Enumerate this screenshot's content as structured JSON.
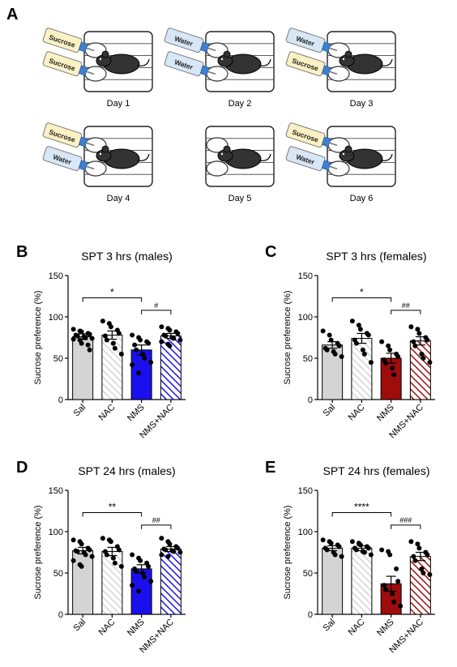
{
  "panel_letters": [
    "A",
    "B",
    "C",
    "D",
    "E"
  ],
  "schedule": {
    "days": [
      {
        "label": "Day 1",
        "bottles": [
          "Sucrose",
          "Sucrose"
        ]
      },
      {
        "label": "Day 2",
        "bottles": [
          "Water",
          "Water"
        ]
      },
      {
        "label": "Day 3",
        "bottles": [
          "Water",
          "Sucrose"
        ]
      },
      {
        "label": "Day 4",
        "bottles": [
          "Sucrose",
          "Water"
        ]
      },
      {
        "label": "Day 5",
        "bottles": []
      },
      {
        "label": "Day 6",
        "bottles": [
          "Sucrose",
          "Water"
        ]
      }
    ]
  },
  "colors": {
    "sal": "#d4d4d4",
    "nac_hatch": "#d4d4d4",
    "nms_males": "#1a10ee",
    "nac_nms_males_hatch": "#1a10ee",
    "nms_females": "#9e0c0c",
    "nac_nms_females_hatch": "#9e0c0c",
    "sucrose_label": "#fbf1c4",
    "water_label": "#d8e7f5",
    "mouse": "#333333"
  },
  "chart_data": [
    {
      "type": "bar",
      "panel": "B",
      "title": "SPT 3 hrs (males)",
      "ylabel": "Sucrose preference (%)",
      "categories": [
        "Sal",
        "NAC",
        "NMS",
        "NMS+NAC"
      ],
      "values": [
        76,
        78,
        60,
        77
      ],
      "errors": [
        3.5,
        5,
        6,
        3
      ],
      "ylim": [
        0,
        150
      ],
      "yticks": [
        0,
        50,
        100,
        150
      ],
      "points": [
        [
          85,
          83,
          82,
          80,
          79,
          78,
          77,
          76,
          75,
          74,
          73,
          72,
          68,
          66,
          60
        ],
        [
          95,
          92,
          88,
          84,
          80,
          77,
          72,
          68,
          62,
          55
        ],
        [
          78,
          75,
          72,
          70,
          68,
          66,
          60,
          55,
          50,
          45,
          42,
          32
        ],
        [
          88,
          86,
          84,
          82,
          80,
          78,
          77,
          75,
          74,
          72,
          70,
          67,
          65
        ]
      ],
      "annotations": [
        {
          "text": "*",
          "from": 0,
          "to": 2
        },
        {
          "text": "#",
          "from": 2,
          "to": 3
        }
      ]
    },
    {
      "type": "bar",
      "panel": "C",
      "title": "SPT 3 hrs (females)",
      "ylabel": "Sucrose preference (%)",
      "categories": [
        "Sal",
        "NAC",
        "NMS",
        "NMS+NAC"
      ],
      "values": [
        66,
        74,
        50,
        71
      ],
      "errors": [
        4,
        6,
        6,
        5
      ],
      "ylim": [
        0,
        150
      ],
      "yticks": [
        0,
        50,
        100,
        150
      ],
      "points": [
        [
          83,
          78,
          72,
          68,
          65,
          62,
          60,
          58,
          55,
          52
        ],
        [
          95,
          90,
          85,
          80,
          78,
          72,
          68,
          60,
          55,
          45
        ],
        [
          70,
          65,
          60,
          55,
          52,
          48,
          44,
          38,
          30
        ],
        [
          88,
          85,
          80,
          75,
          72,
          70,
          65,
          55,
          50,
          45
        ]
      ],
      "annotations": [
        {
          "text": "*",
          "from": 0,
          "to": 2
        },
        {
          "text": "##",
          "from": 2,
          "to": 3
        }
      ]
    },
    {
      "type": "bar",
      "panel": "D",
      "title": "SPT 24 hrs (males)",
      "ylabel": "Sucrose preference (%)",
      "categories": [
        "Sal",
        "NAC",
        "NMS",
        "NMS+NAC"
      ],
      "values": [
        77,
        76,
        55,
        79
      ],
      "errors": [
        4,
        5,
        5,
        3
      ],
      "ylim": [
        0,
        150
      ],
      "yticks": [
        0,
        50,
        100,
        150
      ],
      "points": [
        [
          90,
          88,
          85,
          80,
          78,
          77,
          76,
          75,
          72,
          70,
          65,
          60,
          58
        ],
        [
          92,
          90,
          88,
          82,
          78,
          76,
          72,
          68,
          62,
          58
        ],
        [
          72,
          68,
          65,
          62,
          58,
          55,
          52,
          50,
          45,
          40,
          35,
          28
        ],
        [
          92,
          88,
          85,
          82,
          80,
          79,
          78,
          77,
          76,
          75,
          72,
          70
        ]
      ],
      "annotations": [
        {
          "text": "**",
          "from": 0,
          "to": 2
        },
        {
          "text": "##",
          "from": 2,
          "to": 3
        }
      ]
    },
    {
      "type": "bar",
      "panel": "E",
      "title": "SPT 24 hrs (females)",
      "ylabel": "Sucrose preference (%)",
      "categories": [
        "Sal",
        "NAC",
        "NMS",
        "NMS+NAC"
      ],
      "values": [
        80,
        80,
        37,
        70
      ],
      "errors": [
        3,
        3,
        9,
        5
      ],
      "ylim": [
        0,
        150
      ],
      "yticks": [
        0,
        50,
        100,
        150
      ],
      "points": [
        [
          90,
          88,
          86,
          84,
          82,
          80,
          78,
          75,
          72,
          70
        ],
        [
          88,
          86,
          84,
          82,
          80,
          80,
          78,
          76,
          75,
          72
        ],
        [
          78,
          76,
          72,
          55,
          40,
          35,
          30,
          25,
          15,
          10
        ],
        [
          88,
          85,
          80,
          75,
          72,
          70,
          65,
          55,
          50,
          48
        ]
      ],
      "annotations": [
        {
          "text": "****",
          "from": 0,
          "to": 2
        },
        {
          "text": "###",
          "from": 2,
          "to": 3
        }
      ]
    }
  ]
}
